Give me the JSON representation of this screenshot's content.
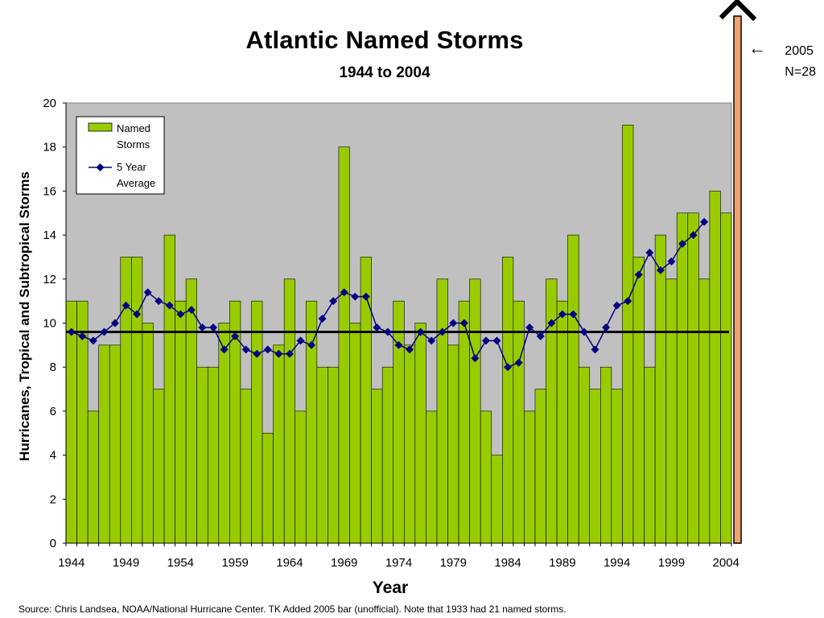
{
  "chart_data": {
    "type": "bar",
    "title": "Atlantic Named Storms",
    "subtitle": "1944 to 2004",
    "xlabel": "Year",
    "ylabel": "Hurricanes, Tropical and Subtropical Storms",
    "ylim": [
      0,
      20
    ],
    "yticks": [
      "0",
      "2",
      "4",
      "6",
      "8",
      "10",
      "12",
      "14",
      "16",
      "18",
      "20"
    ],
    "xticks": [
      "1944",
      "1949",
      "1954",
      "1959",
      "1964",
      "1969",
      "1974",
      "1979",
      "1984",
      "1989",
      "1994",
      "1999",
      "2004"
    ],
    "x": [
      1944,
      1945,
      1946,
      1947,
      1948,
      1949,
      1950,
      1951,
      1952,
      1953,
      1954,
      1955,
      1956,
      1957,
      1958,
      1959,
      1960,
      1961,
      1962,
      1963,
      1964,
      1965,
      1966,
      1967,
      1968,
      1969,
      1970,
      1971,
      1972,
      1973,
      1974,
      1975,
      1976,
      1977,
      1978,
      1979,
      1980,
      1981,
      1982,
      1983,
      1984,
      1985,
      1986,
      1987,
      1988,
      1989,
      1990,
      1991,
      1992,
      1993,
      1994,
      1995,
      1996,
      1997,
      1998,
      1999,
      2000,
      2001,
      2002,
      2003,
      2004
    ],
    "series": [
      {
        "name": "Named Storms",
        "type": "bar",
        "color": "#99cc00",
        "values": [
          11,
          11,
          6,
          9,
          9,
          13,
          13,
          10,
          7,
          14,
          11,
          12,
          8,
          8,
          10,
          11,
          7,
          11,
          5,
          9,
          12,
          6,
          11,
          8,
          8,
          18,
          10,
          13,
          7,
          8,
          11,
          9,
          10,
          6,
          12,
          9,
          11,
          12,
          6,
          4,
          13,
          11,
          6,
          7,
          12,
          11,
          14,
          8,
          7,
          8,
          7,
          19,
          13,
          8,
          14,
          12,
          15,
          15,
          12,
          16,
          15
        ]
      },
      {
        "name": "5 Year Average",
        "type": "line",
        "color": "#000080",
        "values": [
          9.6,
          9.4,
          9.2,
          9.6,
          10.0,
          10.8,
          10.4,
          11.4,
          11.0,
          10.8,
          10.4,
          10.6,
          9.8,
          9.8,
          8.8,
          9.4,
          8.8,
          8.6,
          8.8,
          8.6,
          8.6,
          9.2,
          9.0,
          10.2,
          11.0,
          11.4,
          11.2,
          11.2,
          9.8,
          9.6,
          9.0,
          8.8,
          9.6,
          9.2,
          9.6,
          10.0,
          10.0,
          8.4,
          9.2,
          9.2,
          8.0,
          8.2,
          9.8,
          9.4,
          10.0,
          10.4,
          10.4,
          9.6,
          8.8,
          9.8,
          10.8,
          11.0,
          12.2,
          13.2,
          12.4,
          12.8,
          13.6,
          14.0,
          14.6,
          null,
          null
        ]
      }
    ],
    "mean_line_value": 9.6,
    "grid": false,
    "legend": "top-left",
    "plot_bg": "#c0c0c0",
    "extra_bar": {
      "label_lines": [
        "2005",
        "N=28"
      ],
      "value": 28,
      "color": "#f4a26f"
    }
  },
  "source": "Source:  Chris Landsea, NOAA/National Hurricane Center.  TK Added 2005 bar (unofficial).  Note that 1933 had 21 named storms."
}
